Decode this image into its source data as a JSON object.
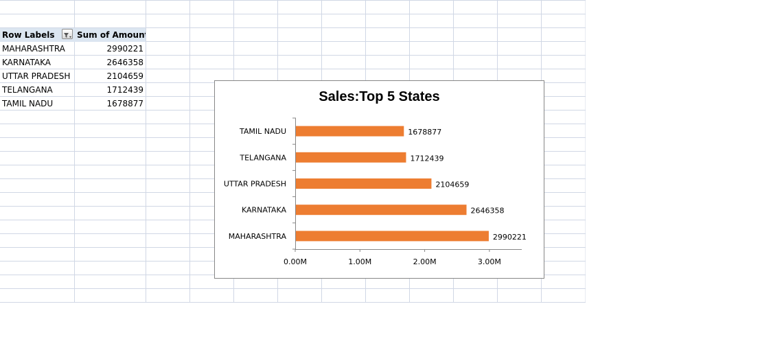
{
  "pivot": {
    "header_row_labels": "Row Labels",
    "header_sum": "Sum of Amount",
    "rows": [
      {
        "label": "MAHARASHTRA",
        "value": "2990221"
      },
      {
        "label": "KARNATAKA",
        "value": "2646358"
      },
      {
        "label": "UTTAR PRADESH",
        "value": "2104659"
      },
      {
        "label": "TELANGANA",
        "value": "1712439"
      },
      {
        "label": "TAMIL NADU",
        "value": "1678877"
      }
    ]
  },
  "chart_data": {
    "type": "bar",
    "orientation": "horizontal",
    "title": "Sales:Top 5 States",
    "categories": [
      "MAHARASHTRA",
      "KARNATAKA",
      "UTTAR PRADESH",
      "TELANGANA",
      "TAMIL NADU"
    ],
    "values": [
      2990221,
      2646358,
      2104659,
      1712439,
      1678877
    ],
    "data_labels": [
      "2990221",
      "2646358",
      "2104659",
      "1712439",
      "1678877"
    ],
    "x_ticks": [
      "0.00M",
      "1.00M",
      "2.00M",
      "3.00M"
    ],
    "xlim": [
      0,
      3500000
    ],
    "bar_color": "#ed7d31",
    "legend": "none",
    "grid": false
  },
  "colors": {
    "gridline": "#d0d7e5",
    "pivot_header": "#dce6f1",
    "chart_border": "#868686"
  }
}
